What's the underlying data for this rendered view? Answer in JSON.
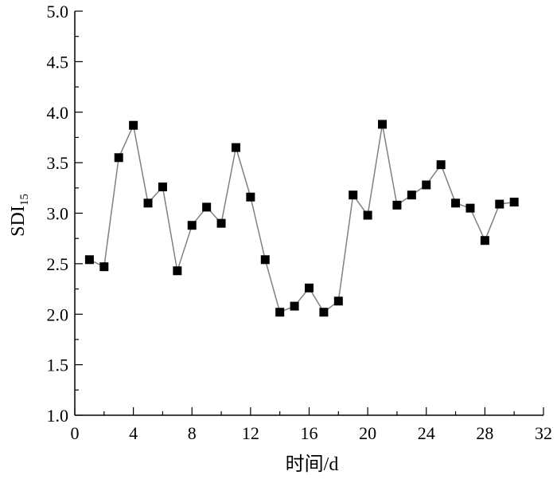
{
  "chart_data": {
    "type": "line",
    "title": "",
    "xlabel": "时间/d",
    "ylabel": "SDI",
    "ylabel_sub": "15",
    "xlim": [
      0,
      32
    ],
    "ylim": [
      1.0,
      5.0
    ],
    "xticks": [
      0,
      4,
      8,
      12,
      16,
      20,
      24,
      28,
      32
    ],
    "yticks": [
      1.0,
      1.5,
      2.0,
      2.5,
      3.0,
      3.5,
      4.0,
      4.5,
      5.0
    ],
    "xtick_labels": [
      "0",
      "4",
      "8",
      "12",
      "16",
      "20",
      "24",
      "28",
      "32"
    ],
    "ytick_labels": [
      "1.0",
      "1.5",
      "2.0",
      "2.5",
      "3.0",
      "3.5",
      "4.0",
      "4.5",
      "5.0"
    ],
    "grid": false,
    "line_color": "#808080",
    "marker_color": "#000000",
    "marker": "square",
    "series": [
      {
        "x": [
          1,
          2,
          3,
          4,
          5,
          6,
          7,
          8,
          9,
          10,
          11,
          12,
          13,
          14,
          15,
          16,
          17,
          18,
          19,
          20,
          21,
          22,
          23,
          24,
          25,
          26,
          27,
          28,
          29,
          30
        ],
        "values": [
          2.54,
          2.47,
          3.55,
          3.87,
          3.1,
          3.26,
          2.43,
          2.88,
          3.06,
          2.9,
          3.65,
          3.16,
          2.54,
          2.02,
          2.08,
          2.26,
          2.02,
          2.13,
          3.18,
          2.98,
          3.88,
          3.08,
          3.18,
          3.28,
          3.48,
          3.1,
          3.05,
          2.73,
          3.09,
          3.11
        ]
      }
    ]
  }
}
